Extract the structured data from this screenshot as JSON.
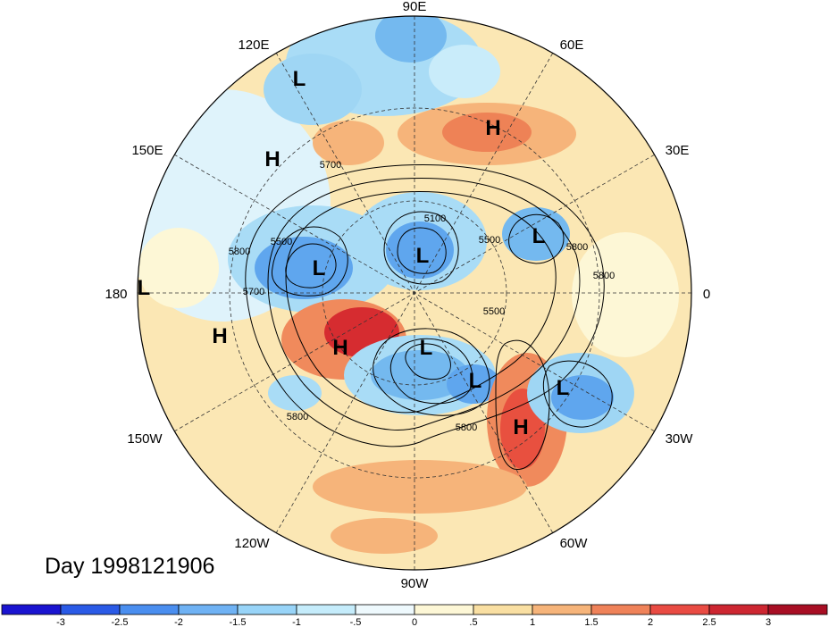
{
  "title": "Day 1998121906",
  "longitude_labels": {
    "e90": "90E",
    "e120": "120E",
    "e60": "60E",
    "e150": "150E",
    "e30": "30E",
    "e180": "180",
    "e0": "0",
    "w150": "150W",
    "w30": "30W",
    "w120": "120W",
    "w60": "60W",
    "w90": "90W"
  },
  "pressure_centers": [
    {
      "name": "L",
      "region": "east-siberia"
    },
    {
      "name": "H",
      "region": "north-russia"
    },
    {
      "name": "H",
      "region": "kamchatka"
    },
    {
      "name": "L",
      "region": "north-pacific"
    },
    {
      "name": "L",
      "region": "arctic"
    },
    {
      "name": "L",
      "region": "europe"
    },
    {
      "name": "L",
      "region": "dateline"
    },
    {
      "name": "H",
      "region": "central-pacific"
    },
    {
      "name": "H",
      "region": "alaska"
    },
    {
      "name": "L",
      "region": "canada"
    },
    {
      "name": "L",
      "region": "hudson-bay"
    },
    {
      "name": "L",
      "region": "north-atlantic"
    },
    {
      "name": "H",
      "region": "atlantic"
    }
  ],
  "contour_labels": [
    "5100",
    "5500",
    "5700",
    "5800",
    "5500",
    "5700",
    "5800",
    "5800",
    "5500",
    "5800",
    "5800"
  ],
  "colorbar": {
    "colors": [
      "#1a14d0",
      "#2a5ae6",
      "#4a8eef",
      "#6fb2f4",
      "#98d4f8",
      "#c5ecfb",
      "#eef9fd",
      "#fdf7d6",
      "#f9dfa2",
      "#f6b47a",
      "#ef8259",
      "#e94b43",
      "#cd2631",
      "#a80e24"
    ],
    "ticks": [
      "-3",
      "-2.5",
      "-2",
      "-1.5",
      "-1",
      "-.5",
      "0",
      ".5",
      "1",
      "1.5",
      "2",
      "2.5",
      "3"
    ]
  }
}
